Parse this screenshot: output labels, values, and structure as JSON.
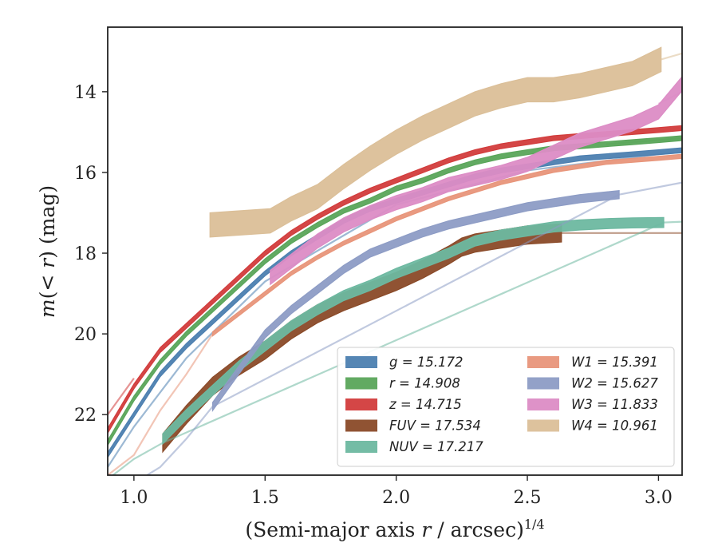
{
  "chart_data": {
    "type": "line",
    "xlabel": "(Semi-major axis r / arcsec)^1/4",
    "ylabel": "m(<r) (mag)",
    "xlim": [
      0.9,
      3.09
    ],
    "ylim": [
      23.5,
      12.4
    ],
    "y_inverted": true,
    "xticks": [
      "1.0",
      "1.5",
      "2.0",
      "2.5",
      "3.0"
    ],
    "yticks": [
      "14",
      "16",
      "18",
      "20",
      "22"
    ],
    "legend_position": "lower-right",
    "legend_columns": 2,
    "series": [
      {
        "name": "g = 15.172",
        "color": "#4c7fb0",
        "x": [
          0.9,
          1.0,
          1.1,
          1.2,
          1.3,
          1.4,
          1.5,
          1.6,
          1.7,
          1.8,
          1.9,
          2.0,
          2.1,
          2.2,
          2.3,
          2.4,
          2.5,
          2.6,
          2.7,
          2.8,
          2.9,
          3.0,
          3.09
        ],
        "y": [
          23.0,
          22.0,
          21.0,
          20.3,
          19.7,
          19.1,
          18.5,
          18.0,
          17.6,
          17.2,
          16.9,
          16.7,
          16.5,
          16.3,
          16.1,
          15.95,
          15.85,
          15.75,
          15.65,
          15.6,
          15.55,
          15.5,
          15.45
        ],
        "width": 0.12,
        "faded": {
          "x": [
            0.9,
            1.0,
            1.2,
            1.5,
            2.0,
            2.5,
            3.0,
            3.09
          ],
          "y": [
            23.3,
            22.3,
            20.6,
            18.7,
            16.8,
            15.95,
            15.55,
            15.5
          ]
        }
      },
      {
        "name": "r = 14.908",
        "color": "#5aa55a",
        "x": [
          0.9,
          1.0,
          1.1,
          1.2,
          1.3,
          1.4,
          1.5,
          1.6,
          1.7,
          1.8,
          1.9,
          2.0,
          2.1,
          2.2,
          2.3,
          2.4,
          2.5,
          2.6,
          2.7,
          2.8,
          2.9,
          3.0,
          3.09
        ],
        "y": [
          22.7,
          21.6,
          20.7,
          20.0,
          19.4,
          18.8,
          18.2,
          17.7,
          17.3,
          16.95,
          16.7,
          16.4,
          16.2,
          15.95,
          15.75,
          15.6,
          15.5,
          15.4,
          15.35,
          15.3,
          15.25,
          15.2,
          15.15
        ],
        "width": 0.12,
        "faded": {
          "x": [
            2.8,
            2.9,
            3.0,
            3.09
          ],
          "y": [
            15.3,
            15.25,
            15.2,
            15.15
          ]
        }
      },
      {
        "name": "z = 14.715",
        "color": "#d23c3c",
        "x": [
          0.9,
          1.0,
          1.1,
          1.2,
          1.3,
          1.4,
          1.5,
          1.6,
          1.7,
          1.8,
          1.9,
          2.0,
          2.1,
          2.2,
          2.3,
          2.4,
          2.5,
          2.6,
          2.7,
          2.8,
          2.9,
          3.0,
          3.09
        ],
        "y": [
          22.4,
          21.3,
          20.4,
          19.8,
          19.2,
          18.6,
          18.0,
          17.5,
          17.1,
          16.75,
          16.45,
          16.2,
          15.95,
          15.7,
          15.5,
          15.35,
          15.25,
          15.15,
          15.1,
          15.05,
          15.0,
          14.95,
          14.9
        ],
        "width": 0.12,
        "faded": {
          "x": [
            0.9,
            1.0
          ],
          "y": [
            22.0,
            21.1
          ]
        }
      },
      {
        "name": "FUV = 17.534",
        "color": "#8a4a28",
        "x": [
          1.11,
          1.2,
          1.3,
          1.4,
          1.5,
          1.6,
          1.7,
          1.8,
          1.9,
          2.0,
          2.1,
          2.2,
          2.25,
          2.3,
          2.4,
          2.5,
          2.63
        ],
        "y": [
          22.7,
          22.0,
          21.3,
          20.8,
          20.4,
          19.9,
          19.5,
          19.2,
          18.95,
          18.7,
          18.4,
          18.05,
          17.85,
          17.75,
          17.65,
          17.55,
          17.5
        ],
        "width": 0.45,
        "faded": {
          "x": [
            2.63,
            2.8,
            3.09
          ],
          "y": [
            17.5,
            17.5,
            17.5
          ]
        }
      },
      {
        "name": "NUV = 17.217",
        "color": "#6db8a0",
        "x": [
          1.11,
          1.2,
          1.3,
          1.4,
          1.5,
          1.6,
          1.7,
          1.8,
          1.9,
          2.0,
          2.1,
          2.2,
          2.3,
          2.4,
          2.5,
          2.6,
          2.7,
          2.8,
          2.9,
          3.02
        ],
        "y": [
          22.6,
          22.0,
          21.4,
          20.8,
          20.3,
          19.8,
          19.4,
          19.05,
          18.8,
          18.5,
          18.25,
          18.0,
          17.7,
          17.55,
          17.45,
          17.35,
          17.3,
          17.27,
          17.25,
          17.24
        ],
        "width": 0.25,
        "faded": {
          "x": [
            0.9,
            1.0,
            1.11,
            3.02,
            3.09
          ],
          "y": [
            23.6,
            23.1,
            22.7,
            17.24,
            17.22
          ]
        }
      },
      {
        "name": "W1 = 15.391",
        "color": "#e8957a",
        "x": [
          1.3,
          1.4,
          1.5,
          1.6,
          1.7,
          1.8,
          1.9,
          2.0,
          2.1,
          2.2,
          2.3,
          2.4,
          2.5,
          2.6,
          2.7,
          2.8,
          2.9,
          3.0,
          3.09
        ],
        "y": [
          20.0,
          19.5,
          19.0,
          18.5,
          18.1,
          17.75,
          17.45,
          17.15,
          16.9,
          16.65,
          16.45,
          16.25,
          16.1,
          15.95,
          15.85,
          15.75,
          15.7,
          15.65,
          15.6
        ],
        "width": 0.1,
        "faded": {
          "x": [
            0.9,
            1.0,
            1.1,
            1.2,
            1.3
          ],
          "y": [
            23.5,
            23.0,
            21.9,
            21.0,
            20.0
          ]
        }
      },
      {
        "name": "W2 = 15.627",
        "color": "#8d9cc5",
        "x": [
          1.3,
          1.4,
          1.5,
          1.6,
          1.7,
          1.8,
          1.9,
          2.0,
          2.1,
          2.2,
          2.3,
          2.4,
          2.5,
          2.6,
          2.7,
          2.85
        ],
        "y": [
          21.8,
          20.9,
          20.0,
          19.4,
          18.9,
          18.4,
          18.0,
          17.75,
          17.5,
          17.3,
          17.15,
          17.0,
          16.85,
          16.75,
          16.65,
          16.55
        ],
        "width": 0.2,
        "faded": {
          "x": [
            1.05,
            1.1,
            1.2,
            1.3,
            2.85,
            3.09
          ],
          "y": [
            23.5,
            23.3,
            22.6,
            21.8,
            16.55,
            16.25
          ]
        }
      },
      {
        "name": "W3 = 11.833",
        "color": "#dc8cc5",
        "x": [
          1.52,
          1.6,
          1.7,
          1.8,
          1.9,
          2.0,
          2.1,
          2.2,
          2.3,
          2.4,
          2.5,
          2.6,
          2.7,
          2.8,
          2.9,
          3.0,
          3.09
        ],
        "y": [
          18.6,
          18.2,
          17.7,
          17.3,
          17.0,
          16.75,
          16.55,
          16.3,
          16.15,
          16.0,
          15.8,
          15.5,
          15.2,
          15.0,
          14.8,
          14.5,
          13.8
        ],
        "width": 0.35,
        "faded": {
          "x": [
            3.0,
            3.09
          ],
          "y": [
            14.3,
            14.0
          ]
        }
      },
      {
        "name": "W4 = 10.961",
        "color": "#dbbf98",
        "x": [
          1.29,
          1.52,
          1.6,
          1.7,
          1.8,
          1.9,
          2.0,
          2.1,
          2.2,
          2.3,
          2.4,
          2.5,
          2.6,
          2.7,
          2.8,
          2.9,
          3.01
        ],
        "y": [
          17.3,
          17.2,
          16.9,
          16.6,
          16.1,
          15.65,
          15.25,
          14.9,
          14.6,
          14.3,
          14.1,
          13.95,
          13.95,
          13.85,
          13.7,
          13.55,
          13.2
        ],
        "width": 0.6,
        "faded": {
          "x": [
            3.01,
            3.09
          ],
          "y": [
            13.2,
            13.05
          ]
        }
      }
    ]
  }
}
